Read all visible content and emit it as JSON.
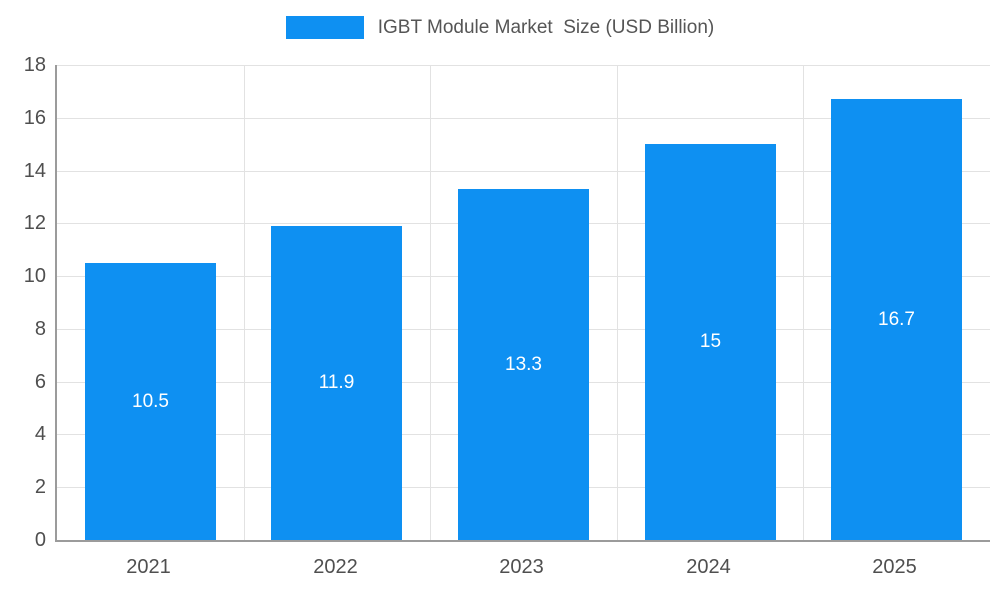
{
  "colors": {
    "bar": "#0e90f2",
    "axis": "#9b9b9b",
    "grid": "#e2e2e2",
    "tick_text": "#4f4f4f",
    "legend_text": "#555555",
    "value_label_text": "#ffffff"
  },
  "legend": {
    "label": "IGBT Module Market  Size (USD Billion)"
  },
  "chart_data": {
    "type": "bar",
    "title": "IGBT Module Market  Size (USD Billion)",
    "categories": [
      "2021",
      "2022",
      "2023",
      "2024",
      "2025"
    ],
    "values": [
      10.5,
      11.9,
      13.3,
      15,
      16.7
    ],
    "value_labels": [
      "10.5",
      "11.9",
      "13.3",
      "15",
      "16.7"
    ],
    "xlabel": "",
    "ylabel": "",
    "ylim": [
      0,
      18
    ],
    "ytick_step": 2,
    "grid": true,
    "legend_position": "top",
    "value_labels_position": "inside-center"
  }
}
